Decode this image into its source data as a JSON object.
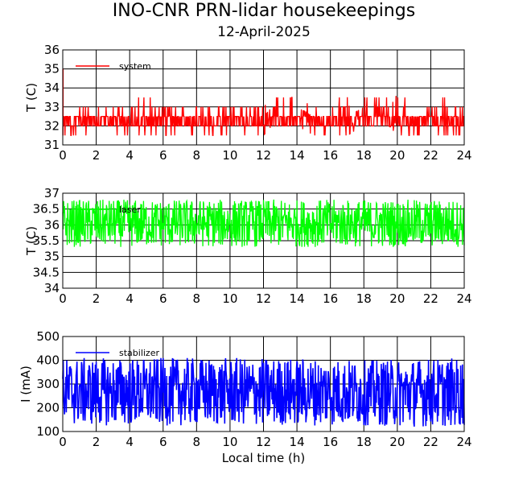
{
  "title": "INO-CNR PRN-lidar housekeepings",
  "subtitle": "12-April-2025",
  "chart_data": [
    {
      "type": "line",
      "ylabel": "T (C)",
      "xlabel": "",
      "xlim": [
        0,
        24
      ],
      "ylim": [
        31,
        36
      ],
      "xticks": [
        "0",
        "2",
        "4",
        "6",
        "8",
        "10",
        "12",
        "14",
        "16",
        "18",
        "20",
        "22",
        "24"
      ],
      "yticks": [
        "31",
        "32",
        "33",
        "34",
        "35",
        "36"
      ],
      "grid": true,
      "legend_placement": "top-left",
      "series": [
        {
          "name": "system",
          "color": "#ff0000",
          "x": [
            0,
            1,
            2,
            3,
            4,
            5,
            6,
            7,
            8,
            9,
            10,
            11,
            12,
            12.5,
            13,
            14,
            15,
            16,
            17,
            18,
            19,
            19.5,
            20,
            21,
            22,
            23,
            24
          ],
          "low": [
            31.5,
            31.5,
            31.5,
            31.5,
            31.5,
            31.5,
            31.5,
            31.5,
            31.5,
            31.5,
            31.5,
            31.5,
            31.5,
            32.0,
            32.0,
            32.0,
            31.5,
            31.5,
            31.5,
            32.0,
            32.0,
            32.0,
            31.5,
            31.5,
            31.5,
            31.5,
            31.5
          ],
          "high": [
            32.5,
            33.0,
            33.0,
            33.0,
            33.0,
            33.5,
            33.0,
            33.0,
            33.5,
            33.0,
            33.0,
            33.0,
            33.0,
            33.5,
            33.5,
            33.5,
            33.0,
            33.5,
            33.5,
            33.5,
            33.5,
            33.5,
            33.5,
            33.0,
            33.0,
            33.5,
            33.0
          ],
          "spikes_to": [
            [
              0.02,
              35.0
            ]
          ]
        }
      ]
    },
    {
      "type": "line",
      "ylabel": "T (C)",
      "xlabel": "",
      "xlim": [
        0,
        24
      ],
      "ylim": [
        34,
        37
      ],
      "xticks": [
        "0",
        "2",
        "4",
        "6",
        "8",
        "10",
        "12",
        "14",
        "16",
        "18",
        "20",
        "22",
        "24"
      ],
      "yticks": [
        "34",
        "34.5",
        "35",
        "35.5",
        "36",
        "36.5",
        "37"
      ],
      "grid": true,
      "legend_placement": "top-left",
      "series": [
        {
          "name": "laser",
          "color": "#00ff00",
          "x": [
            0,
            2,
            4,
            6,
            8,
            10,
            12,
            14,
            16,
            18,
            20,
            22,
            24
          ],
          "low": [
            35.3,
            35.3,
            35.3,
            35.3,
            35.3,
            35.3,
            35.3,
            35.3,
            35.3,
            35.3,
            35.3,
            35.3,
            35.3
          ],
          "high": [
            36.8,
            36.8,
            36.8,
            36.8,
            36.8,
            36.8,
            36.8,
            36.8,
            36.8,
            36.8,
            36.8,
            36.8,
            36.8
          ]
        }
      ]
    },
    {
      "type": "line",
      "ylabel": "I (mA)",
      "xlabel": "Local time (h)",
      "xlim": [
        0,
        24
      ],
      "ylim": [
        100,
        500
      ],
      "xticks": [
        "0",
        "2",
        "4",
        "6",
        "8",
        "10",
        "12",
        "14",
        "16",
        "18",
        "20",
        "22",
        "24"
      ],
      "yticks": [
        "100",
        "200",
        "300",
        "400",
        "500"
      ],
      "grid": true,
      "legend_placement": "top-left",
      "series": [
        {
          "name": "stabilizer",
          "color": "#0000ff",
          "x": [
            0,
            2,
            4,
            6,
            8,
            10,
            12,
            14,
            16,
            18,
            20,
            22,
            24
          ],
          "low": [
            125,
            125,
            125,
            125,
            125,
            125,
            125,
            125,
            125,
            125,
            120,
            120,
            120
          ],
          "high": [
            410,
            410,
            410,
            410,
            410,
            410,
            410,
            410,
            410,
            400,
            405,
            410,
            410
          ]
        }
      ]
    }
  ]
}
